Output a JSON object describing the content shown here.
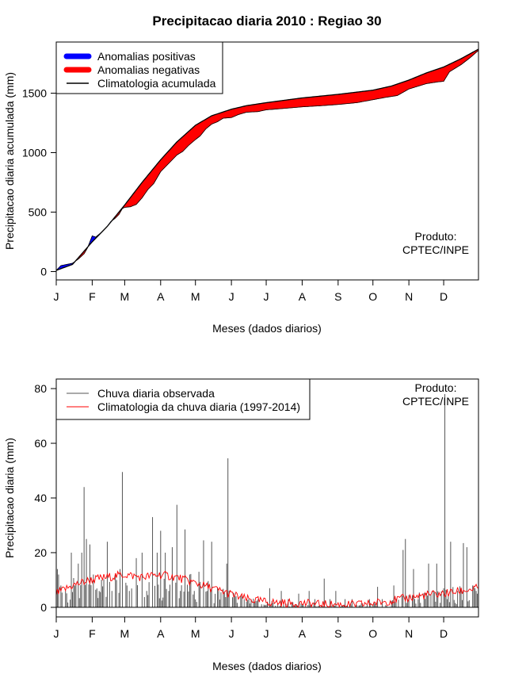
{
  "figure": {
    "title": "Precipitacao diaria 2010 : Regiao 30",
    "credit_line1": "Produto:",
    "credit_line2": "CPTEC/INPE"
  },
  "chart_data": [
    {
      "type": "area",
      "name": "accumulated",
      "xlabel": "Meses (dados diarios)",
      "ylabel": "Precipitacao diaria acumulada (mm)",
      "xlim": [
        1,
        365
      ],
      "ylim": [
        -70,
        1930
      ],
      "month_labels": [
        "J",
        "F",
        "M",
        "A",
        "M",
        "J",
        "J",
        "A",
        "S",
        "O",
        "N",
        "D"
      ],
      "month_start_days": [
        1,
        32,
        60,
        91,
        121,
        152,
        182,
        213,
        244,
        274,
        305,
        335
      ],
      "y_ticks": [
        0,
        500,
        1000,
        1500
      ],
      "legend": [
        {
          "label": "Anomalias positivas",
          "color": "#0000ff"
        },
        {
          "label": "Anomalias negativas",
          "color": "#ff0000"
        },
        {
          "label": "Climatologia acumulada",
          "color": "#000000"
        }
      ],
      "climatology_knots": [
        [
          1,
          10
        ],
        [
          15,
          60
        ],
        [
          32,
          250
        ],
        [
          45,
          380
        ],
        [
          60,
          560
        ],
        [
          75,
          750
        ],
        [
          91,
          940
        ],
        [
          105,
          1090
        ],
        [
          121,
          1230
        ],
        [
          135,
          1310
        ],
        [
          152,
          1365
        ],
        [
          165,
          1395
        ],
        [
          182,
          1420
        ],
        [
          213,
          1460
        ],
        [
          244,
          1490
        ],
        [
          274,
          1525
        ],
        [
          290,
          1560
        ],
        [
          305,
          1610
        ],
        [
          320,
          1670
        ],
        [
          335,
          1720
        ],
        [
          350,
          1790
        ],
        [
          365,
          1870
        ]
      ],
      "observed_knots": [
        [
          1,
          10
        ],
        [
          5,
          50
        ],
        [
          10,
          60
        ],
        [
          15,
          70
        ],
        [
          20,
          105
        ],
        [
          25,
          150
        ],
        [
          28,
          200
        ],
        [
          32,
          300
        ],
        [
          35,
          290
        ],
        [
          40,
          330
        ],
        [
          45,
          380
        ],
        [
          48,
          420
        ],
        [
          52,
          450
        ],
        [
          55,
          480
        ],
        [
          58,
          530
        ],
        [
          60,
          540
        ],
        [
          65,
          545
        ],
        [
          70,
          565
        ],
        [
          75,
          620
        ],
        [
          80,
          690
        ],
        [
          85,
          740
        ],
        [
          91,
          840
        ],
        [
          97,
          900
        ],
        [
          105,
          980
        ],
        [
          110,
          1010
        ],
        [
          115,
          1060
        ],
        [
          121,
          1110
        ],
        [
          125,
          1140
        ],
        [
          130,
          1200
        ],
        [
          135,
          1240
        ],
        [
          140,
          1260
        ],
        [
          145,
          1290
        ],
        [
          152,
          1295
        ],
        [
          158,
          1320
        ],
        [
          165,
          1340
        ],
        [
          175,
          1345
        ],
        [
          182,
          1360
        ],
        [
          195,
          1370
        ],
        [
          213,
          1385
        ],
        [
          230,
          1395
        ],
        [
          244,
          1405
        ],
        [
          260,
          1420
        ],
        [
          274,
          1445
        ],
        [
          285,
          1465
        ],
        [
          295,
          1480
        ],
        [
          305,
          1535
        ],
        [
          320,
          1580
        ],
        [
          330,
          1595
        ],
        [
          335,
          1600
        ],
        [
          340,
          1680
        ],
        [
          350,
          1740
        ],
        [
          358,
          1800
        ],
        [
          365,
          1860
        ]
      ]
    },
    {
      "type": "bar",
      "name": "daily",
      "xlabel": "Meses (dados diarios)",
      "ylabel": "Precipitacao diaria (mm)",
      "xlim": [
        1,
        365
      ],
      "ylim": [
        -3.5,
        83.5
      ],
      "month_labels": [
        "J",
        "F",
        "M",
        "A",
        "M",
        "J",
        "J",
        "A",
        "S",
        "O",
        "N",
        "D"
      ],
      "month_start_days": [
        1,
        32,
        60,
        91,
        121,
        152,
        182,
        213,
        244,
        274,
        305,
        335
      ],
      "y_ticks": [
        0,
        20,
        40,
        60,
        80
      ],
      "legend": [
        {
          "label": "Chuva diaria observada",
          "color": "#555555"
        },
        {
          "label": "Climatologia da chuva diaria (1997-2014)",
          "color": "#ff0000"
        }
      ],
      "observed_peaks": [
        [
          1,
          25.5
        ],
        [
          2,
          14
        ],
        [
          3,
          12
        ],
        [
          5,
          8
        ],
        [
          9,
          6
        ],
        [
          14,
          20
        ],
        [
          17,
          8
        ],
        [
          20,
          16
        ],
        [
          23,
          20
        ],
        [
          25,
          44
        ],
        [
          27,
          25
        ],
        [
          30,
          23
        ],
        [
          33,
          12
        ],
        [
          38,
          6
        ],
        [
          45,
          24
        ],
        [
          49,
          6
        ],
        [
          53,
          10
        ],
        [
          56,
          14
        ],
        [
          58,
          49.5
        ],
        [
          61,
          9
        ],
        [
          64,
          6
        ],
        [
          70,
          18
        ],
        [
          75,
          20
        ],
        [
          79,
          6
        ],
        [
          84,
          33
        ],
        [
          88,
          20
        ],
        [
          91,
          28
        ],
        [
          95,
          20
        ],
        [
          98,
          6
        ],
        [
          101,
          22
        ],
        [
          105,
          37.5
        ],
        [
          108,
          6
        ],
        [
          112,
          28.5
        ],
        [
          116,
          12
        ],
        [
          120,
          6
        ],
        [
          124,
          13
        ],
        [
          128,
          24.5
        ],
        [
          131,
          6
        ],
        [
          135,
          24
        ],
        [
          141,
          6
        ],
        [
          148,
          16
        ],
        [
          149,
          54.5
        ],
        [
          155,
          4
        ],
        [
          163,
          3
        ],
        [
          169,
          3
        ],
        [
          175,
          3
        ],
        [
          185,
          7
        ],
        [
          195,
          6
        ],
        [
          201,
          3
        ],
        [
          210,
          5
        ],
        [
          219,
          6
        ],
        [
          224,
          3
        ],
        [
          232,
          10.5
        ],
        [
          237,
          3
        ],
        [
          242,
          6
        ],
        [
          250,
          3
        ],
        [
          256,
          3
        ],
        [
          271,
          3
        ],
        [
          278,
          7.5
        ],
        [
          282,
          3
        ],
        [
          292,
          8
        ],
        [
          300,
          21
        ],
        [
          302,
          25
        ],
        [
          309,
          14
        ],
        [
          313,
          3
        ],
        [
          322,
          16
        ],
        [
          329,
          16
        ],
        [
          336,
          78
        ],
        [
          338,
          3
        ],
        [
          341,
          24
        ],
        [
          347,
          6
        ],
        [
          352,
          23.5
        ],
        [
          355,
          22
        ],
        [
          360,
          8
        ],
        [
          363,
          6
        ],
        [
          364,
          5
        ]
      ],
      "climatology_knots": [
        [
          1,
          5
        ],
        [
          15,
          8
        ],
        [
          30,
          10
        ],
        [
          45,
          11
        ],
        [
          60,
          12
        ],
        [
          75,
          11
        ],
        [
          90,
          12
        ],
        [
          105,
          11
        ],
        [
          120,
          9
        ],
        [
          135,
          7
        ],
        [
          150,
          5
        ],
        [
          165,
          3
        ],
        [
          182,
          2
        ],
        [
          200,
          1.5
        ],
        [
          213,
          1.5
        ],
        [
          230,
          1
        ],
        [
          244,
          1
        ],
        [
          260,
          1
        ],
        [
          274,
          1.5
        ],
        [
          290,
          2.5
        ],
        [
          305,
          3.5
        ],
        [
          320,
          4.5
        ],
        [
          335,
          5
        ],
        [
          350,
          6
        ],
        [
          365,
          7
        ]
      ]
    }
  ]
}
